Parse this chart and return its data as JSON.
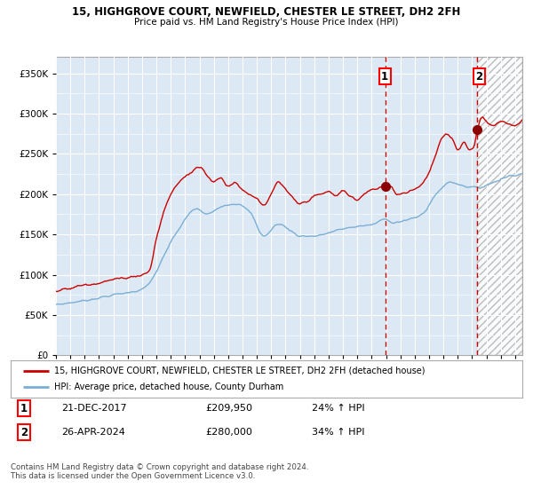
{
  "title": "15, HIGHGROVE COURT, NEWFIELD, CHESTER LE STREET, DH2 2FH",
  "subtitle": "Price paid vs. HM Land Registry's House Price Index (HPI)",
  "ylim": [
    0,
    370000
  ],
  "xlim_start": 1995.0,
  "xlim_end": 2027.5,
  "plot_bg_color": "#dce9f5",
  "hatch_region_start": 2024.35,
  "vline1_x": 2017.97,
  "vline2_x": 2024.35,
  "marker1_x": 2017.97,
  "marker1_y": 209950,
  "marker2_x": 2024.35,
  "marker2_y": 280000,
  "legend_line1": "15, HIGHGROVE COURT, NEWFIELD, CHESTER LE STREET, DH2 2FH (detached house)",
  "legend_line2": "HPI: Average price, detached house, County Durham",
  "annotation1_date": "21-DEC-2017",
  "annotation1_price": "£209,950",
  "annotation1_hpi": "24% ↑ HPI",
  "annotation2_date": "26-APR-2024",
  "annotation2_price": "£280,000",
  "annotation2_hpi": "34% ↑ HPI",
  "footer": "Contains HM Land Registry data © Crown copyright and database right 2024.\nThis data is licensed under the Open Government Licence v3.0.",
  "red_line_color": "#cc0000",
  "blue_line_color": "#7aaed4",
  "ytick_labels": [
    "£0",
    "£50K",
    "£100K",
    "£150K",
    "£200K",
    "£250K",
    "£300K",
    "£350K"
  ],
  "ytick_values": [
    0,
    50000,
    100000,
    150000,
    200000,
    250000,
    300000,
    350000
  ]
}
